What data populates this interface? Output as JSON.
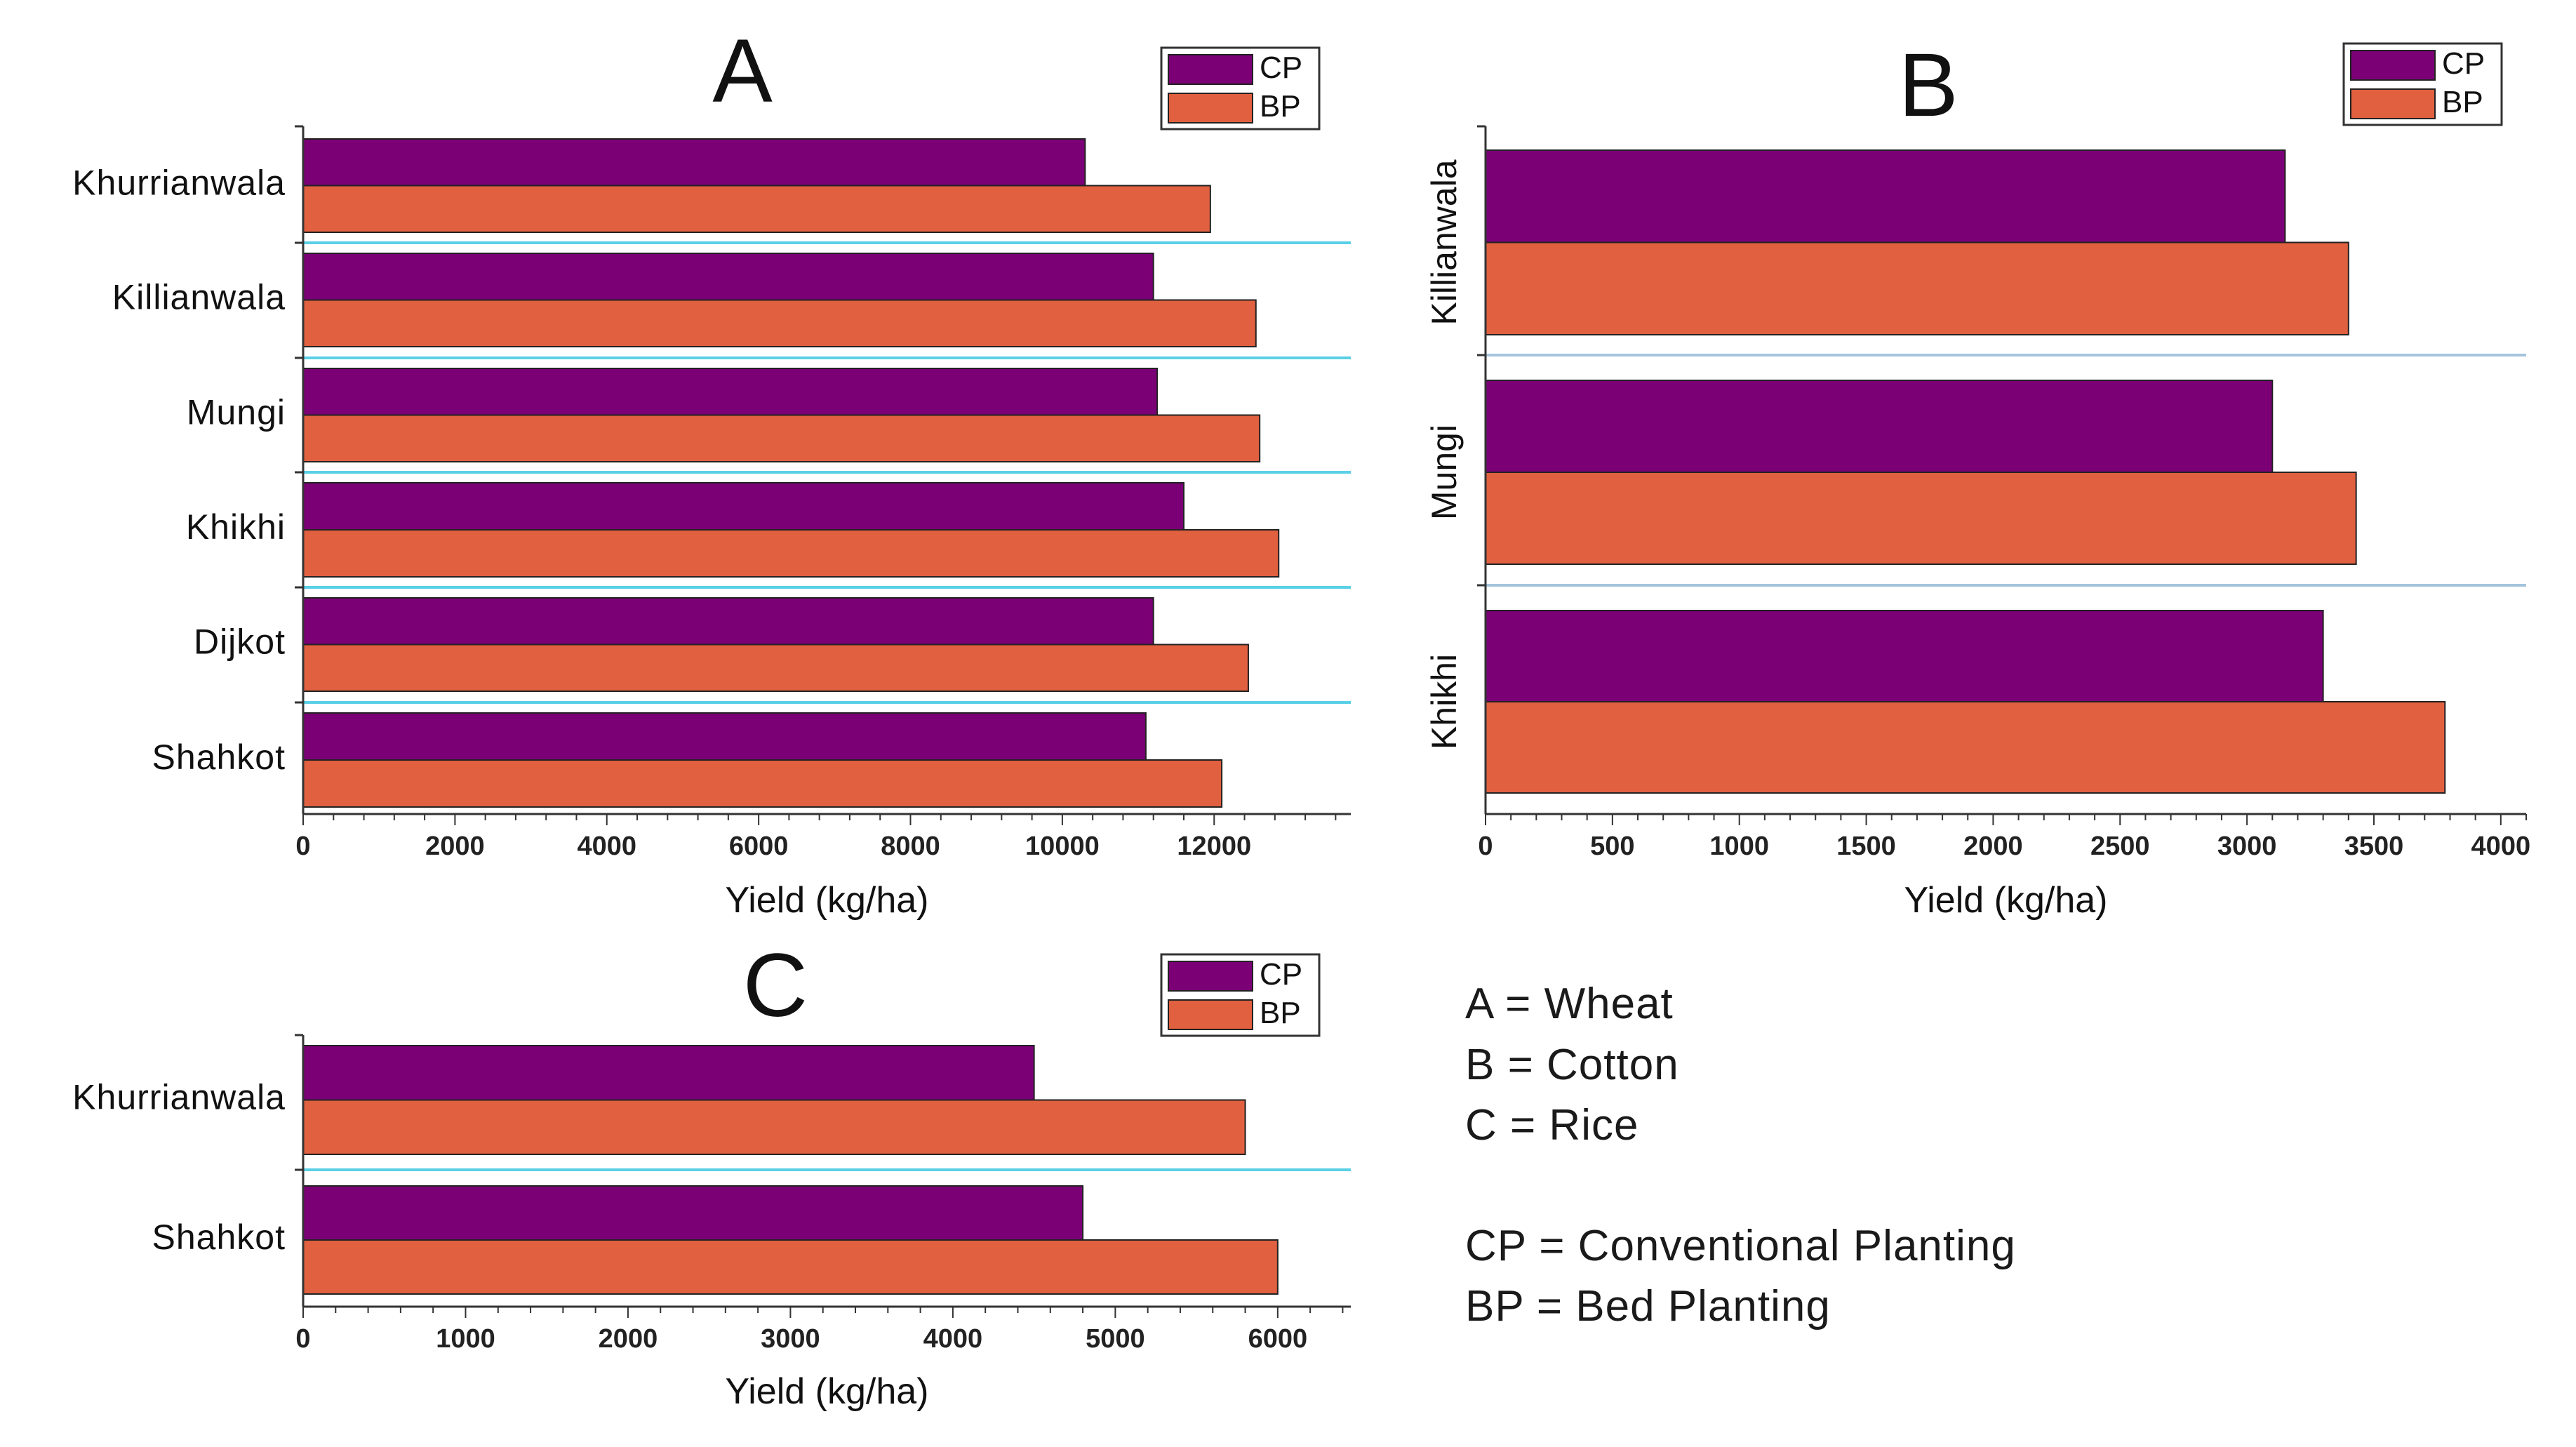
{
  "chart_data": [
    {
      "type": "bar",
      "orientation": "horizontal",
      "title": "A",
      "categories": [
        "Khurrianwala",
        "Killianwala",
        "Mungi",
        "Khikhi",
        "Dijkot",
        "Shahkot"
      ],
      "series": [
        {
          "name": "CP",
          "color": "#7b0076",
          "values": [
            10300,
            11200,
            11250,
            11600,
            11200,
            11100
          ]
        },
        {
          "name": "BP",
          "color": "#e06040",
          "values": [
            11950,
            12550,
            12600,
            12850,
            12450,
            12100
          ]
        }
      ],
      "xlabel": "Yield (kg/ha)",
      "ylabel": "",
      "xlim": [
        0,
        13800
      ],
      "xticks": [
        0,
        2000,
        4000,
        6000,
        8000,
        10000,
        12000
      ],
      "tick_labels": [
        "0",
        "2000",
        "4000",
        "6000",
        "8000",
        "10000",
        "12000"
      ],
      "legend": [
        "CP",
        "BP"
      ],
      "legend_position": "top-right",
      "category_label_orientation": "horizontal"
    },
    {
      "type": "bar",
      "orientation": "horizontal",
      "title": "B",
      "categories": [
        "Killianwala",
        "Mungi",
        "Khikhi"
      ],
      "series": [
        {
          "name": "CP",
          "color": "#7b0076",
          "values": [
            3150,
            3100,
            3300
          ]
        },
        {
          "name": "BP",
          "color": "#e06040",
          "values": [
            3400,
            3430,
            3780
          ]
        }
      ],
      "xlabel": "Yield (kg/ha)",
      "ylabel": "",
      "xlim": [
        0,
        4100
      ],
      "xticks": [
        0,
        500,
        1000,
        1500,
        2000,
        2500,
        3000,
        3500,
        4000
      ],
      "tick_labels": [
        "0",
        "500",
        "1000",
        "1500",
        "2000",
        "2500",
        "3000",
        "3500",
        "4000"
      ],
      "legend": [
        "CP",
        "BP"
      ],
      "legend_position": "top-right",
      "category_label_orientation": "vertical"
    },
    {
      "type": "bar",
      "orientation": "horizontal",
      "title": "C",
      "categories": [
        "Khurrianwala",
        "Shahkot"
      ],
      "series": [
        {
          "name": "CP",
          "color": "#7b0076",
          "values": [
            4500,
            4800
          ]
        },
        {
          "name": "BP",
          "color": "#e06040",
          "values": [
            5800,
            6000
          ]
        }
      ],
      "xlabel": "Yield (kg/ha)",
      "ylabel": "",
      "xlim": [
        0,
        6450
      ],
      "xticks": [
        0,
        1000,
        2000,
        3000,
        4000,
        5000,
        6000
      ],
      "tick_labels": [
        "0",
        "1000",
        "2000",
        "3000",
        "4000",
        "5000",
        "6000"
      ],
      "legend": [
        "CP",
        "BP"
      ],
      "legend_position": "top-right",
      "category_label_orientation": "horizontal"
    }
  ],
  "key": {
    "lines": [
      "A = Wheat",
      "B = Cotton",
      "C = Rice",
      "CP = Conventional Planting",
      "BP = Bed Planting"
    ]
  },
  "colors": {
    "cp": "#7b0076",
    "bp": "#e06040",
    "separator": "#5ad0e6",
    "separator_b": "#a4c4dc",
    "axis": "#333333"
  }
}
